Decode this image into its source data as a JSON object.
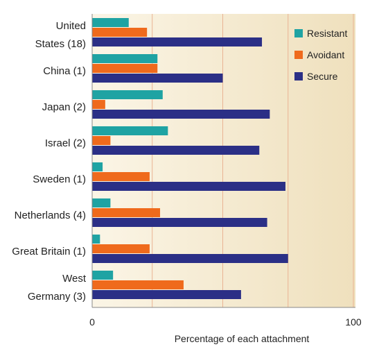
{
  "colors": {
    "resistant": "#1fa3a3",
    "avoidant": "#ef6a1c",
    "secure": "#2b2f86",
    "background_light": "#fbf5e6",
    "background_dark": "#efe0bd",
    "gridline": "#e9b393"
  },
  "chart_data": {
    "type": "bar",
    "orientation": "horizontal",
    "categories": [
      [
        "United",
        "States (18)"
      ],
      [
        "China (1)"
      ],
      [
        "Japan (2)"
      ],
      [
        "Israel (2)"
      ],
      [
        "Sweden (1)"
      ],
      [
        "Netherlands (4)"
      ],
      [
        "Great Britain (1)"
      ],
      [
        "West",
        "Germany (3)"
      ]
    ],
    "series": [
      {
        "name": "Resistant",
        "color": "#1fa3a3",
        "values": [
          14,
          25,
          27,
          29,
          4,
          7,
          3,
          8
        ]
      },
      {
        "name": "Avoidant",
        "color": "#ef6a1c",
        "values": [
          21,
          25,
          5,
          7,
          22,
          26,
          22,
          35
        ]
      },
      {
        "name": "Secure",
        "color": "#2b2f86",
        "values": [
          65,
          50,
          68,
          64,
          74,
          67,
          75,
          57
        ]
      }
    ],
    "xlabel": "Percentage of each attachment",
    "xlim": [
      0,
      100
    ],
    "xticks": [
      "0",
      "100"
    ],
    "gridlines_at": [
      23,
      50,
      75,
      100
    ],
    "legend_position": "top-right"
  }
}
